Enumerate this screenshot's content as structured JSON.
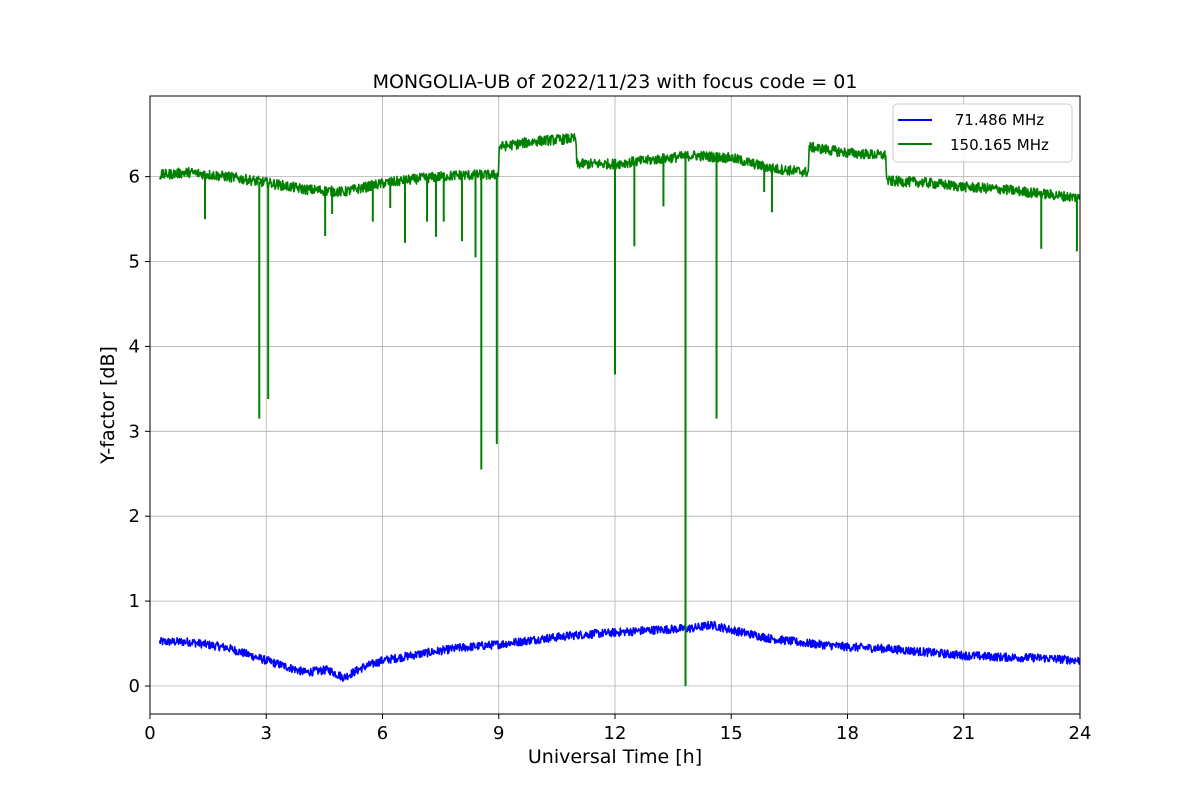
{
  "chart_data": {
    "type": "line",
    "title": "MONGOLIA-UB of 2022/11/23 with focus code = 01",
    "xlabel": "Universal Time [h]",
    "ylabel": "Y-factor [dB]",
    "xlim": [
      0,
      24
    ],
    "ylim": [
      -0.33,
      6.95
    ],
    "xticks": [
      0,
      3,
      6,
      9,
      12,
      15,
      18,
      21,
      24
    ],
    "yticks": [
      0,
      1,
      2,
      3,
      4,
      5,
      6
    ],
    "grid": true,
    "legend_position": "top-right",
    "series": [
      {
        "name": " 71.486 MHz",
        "color": "#0000ff",
        "noise": 0.05,
        "x": [
          0.25,
          1.0,
          2.0,
          3.0,
          4.0,
          4.6,
          5.0,
          5.5,
          6.0,
          7.0,
          8.0,
          9.0,
          10.0,
          11.0,
          12.0,
          13.0,
          14.0,
          14.5,
          15.0,
          16.0,
          17.0,
          18.0,
          19.0,
          20.0,
          21.0,
          22.0,
          23.0,
          24.0
        ],
        "values": [
          0.52,
          0.52,
          0.45,
          0.3,
          0.16,
          0.19,
          0.1,
          0.22,
          0.3,
          0.38,
          0.45,
          0.49,
          0.55,
          0.6,
          0.63,
          0.66,
          0.68,
          0.72,
          0.66,
          0.56,
          0.5,
          0.46,
          0.44,
          0.4,
          0.36,
          0.34,
          0.33,
          0.3
        ],
        "spikes": []
      },
      {
        "name": "150.165 MHz",
        "color": "#008000",
        "noise": 0.06,
        "x": [
          0.25,
          1.0,
          2.0,
          3.0,
          4.0,
          5.0,
          6.0,
          7.0,
          8.0,
          8.99,
          9.01,
          10.0,
          10.99,
          11.01,
          12.0,
          13.0,
          14.0,
          15.0,
          16.0,
          16.99,
          17.01,
          18.0,
          18.99,
          19.01,
          20.0,
          21.0,
          22.0,
          23.0,
          24.0
        ],
        "values": [
          6.02,
          6.05,
          6.0,
          5.93,
          5.85,
          5.82,
          5.92,
          5.98,
          6.02,
          6.02,
          6.35,
          6.42,
          6.45,
          6.15,
          6.15,
          6.2,
          6.25,
          6.22,
          6.1,
          6.05,
          6.35,
          6.28,
          6.25,
          5.95,
          5.93,
          5.88,
          5.85,
          5.8,
          5.75
        ],
        "spikes": [
          {
            "x": 1.42,
            "y": 5.5
          },
          {
            "x": 2.82,
            "y": 3.15
          },
          {
            "x": 3.05,
            "y": 3.38
          },
          {
            "x": 4.52,
            "y": 5.3
          },
          {
            "x": 4.7,
            "y": 5.56
          },
          {
            "x": 5.75,
            "y": 5.47
          },
          {
            "x": 6.2,
            "y": 5.63
          },
          {
            "x": 6.58,
            "y": 5.22
          },
          {
            "x": 7.15,
            "y": 5.47
          },
          {
            "x": 7.38,
            "y": 5.29
          },
          {
            "x": 7.58,
            "y": 5.47
          },
          {
            "x": 8.05,
            "y": 5.24
          },
          {
            "x": 8.4,
            "y": 5.05
          },
          {
            "x": 8.55,
            "y": 2.55
          },
          {
            "x": 8.95,
            "y": 2.85
          },
          {
            "x": 12.0,
            "y": 3.67
          },
          {
            "x": 12.5,
            "y": 5.18
          },
          {
            "x": 13.25,
            "y": 5.65
          },
          {
            "x": 13.82,
            "y": 0.0
          },
          {
            "x": 14.62,
            "y": 3.15
          },
          {
            "x": 15.85,
            "y": 5.82
          },
          {
            "x": 16.05,
            "y": 5.58
          },
          {
            "x": 23.0,
            "y": 5.15
          },
          {
            "x": 23.92,
            "y": 5.12
          }
        ]
      }
    ]
  }
}
